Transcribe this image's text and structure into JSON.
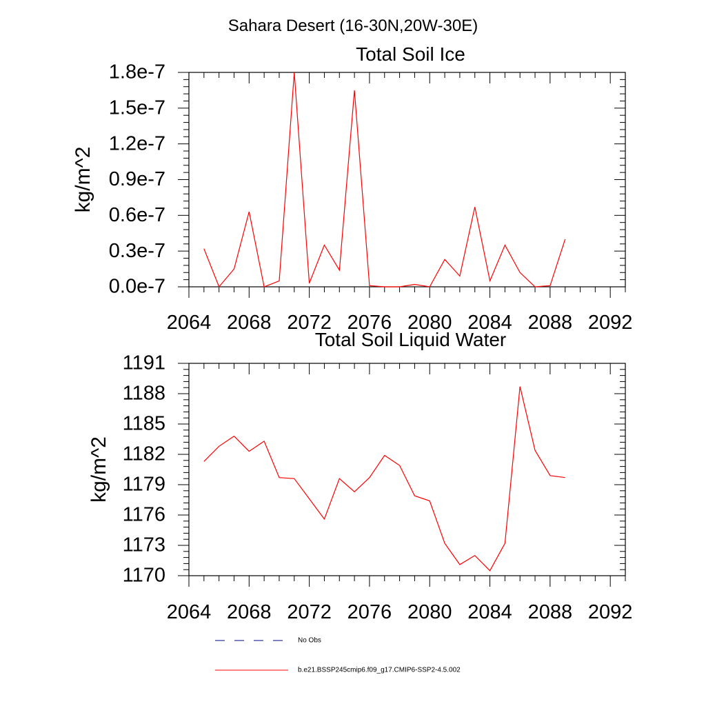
{
  "page": {
    "title": "Sahara Desert (16-30N,20W-30E)"
  },
  "chart_data": [
    {
      "type": "line",
      "title": "Total Soil Ice",
      "xlabel": "",
      "ylabel": "kg/m^2",
      "xlim": [
        2064,
        2093
      ],
      "ylim": [
        0,
        1.8e-07
      ],
      "grid": false,
      "x_ticks": [
        2064,
        2068,
        2072,
        2076,
        2080,
        2084,
        2088,
        2092
      ],
      "x_tick_labels": [
        "2064",
        "2068",
        "2072",
        "2076",
        "2080",
        "2084",
        "2088",
        "2092"
      ],
      "y_ticks": [
        0,
        3e-08,
        6e-08,
        9e-08,
        1.2e-07,
        1.5e-07,
        1.8e-07
      ],
      "y_tick_labels": [
        "0.0e-7",
        "0.3e-7",
        "0.6e-7",
        "0.9e-7",
        "1.2e-7",
        "1.5e-7",
        "1.8e-7"
      ],
      "x": [
        2065,
        2066,
        2067,
        2068,
        2069,
        2070,
        2071,
        2072,
        2073,
        2074,
        2075,
        2076,
        2077,
        2078,
        2079,
        2080,
        2081,
        2082,
        2083,
        2084,
        2085,
        2086,
        2087,
        2088,
        2089
      ],
      "series": [
        {
          "color": "#ff0000",
          "values": [
            3.2e-08,
            0.0,
            1.5e-08,
            6.3e-08,
            0.0,
            5e-09,
            1.8e-07,
            3e-09,
            3.5e-08,
            1.4e-08,
            1.65e-07,
            1e-09,
            0.0,
            0.0,
            2e-09,
            0.0,
            2.3e-08,
            9e-09,
            6.7e-08,
            5e-09,
            3.5e-08,
            1.2e-08,
            0.0,
            1e-09,
            4e-08
          ]
        }
      ]
    },
    {
      "type": "line",
      "title": "Total Soil Liquid Water",
      "xlabel": "",
      "ylabel": "kg/m^2",
      "xlim": [
        2064,
        2093
      ],
      "ylim": [
        1170,
        1191
      ],
      "grid": false,
      "x_ticks": [
        2064,
        2068,
        2072,
        2076,
        2080,
        2084,
        2088,
        2092
      ],
      "x_tick_labels": [
        "2064",
        "2068",
        "2072",
        "2076",
        "2080",
        "2084",
        "2088",
        "2092"
      ],
      "y_ticks": [
        1170,
        1173,
        1176,
        1179,
        1182,
        1185,
        1188,
        1191
      ],
      "y_tick_labels": [
        "1170",
        "1173",
        "1176",
        "1179",
        "1182",
        "1185",
        "1188",
        "1191"
      ],
      "x": [
        2065,
        2066,
        2067,
        2068,
        2069,
        2070,
        2071,
        2072,
        2073,
        2074,
        2075,
        2076,
        2077,
        2078,
        2079,
        2080,
        2081,
        2082,
        2083,
        2084,
        2085,
        2086,
        2087,
        2088,
        2089
      ],
      "series": [
        {
          "color": "#ff0000",
          "values": [
            1181.3,
            1182.8,
            1183.8,
            1182.3,
            1183.3,
            1179.7,
            1179.6,
            1177.6,
            1175.6,
            1179.6,
            1178.3,
            1179.7,
            1181.9,
            1180.9,
            1177.9,
            1177.4,
            1173.2,
            1171.1,
            1172.0,
            1170.5,
            1173.2,
            1188.7,
            1182.4,
            1179.9,
            1179.7
          ]
        }
      ]
    }
  ],
  "legend": {
    "placement": "bottom",
    "items": [
      {
        "label": "No Obs",
        "color": "#00008b",
        "dash": true
      },
      {
        "label": "b.e21.BSSP245cmip6.f09_g17.CMIP6-SSP2-4.5.002",
        "color": "#ff0000",
        "dash": false
      }
    ]
  }
}
